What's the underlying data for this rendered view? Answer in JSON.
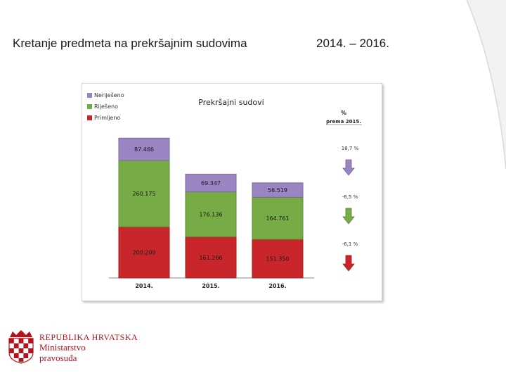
{
  "slide": {
    "title": "Kretanje predmeta na prekršajnim sudovima",
    "years_range": "2014. – 2016."
  },
  "chart_data": {
    "type": "bar",
    "stacked": true,
    "title": "Prekršajni sudovi",
    "categories": [
      "2014.",
      "2015.",
      "2016."
    ],
    "series": [
      {
        "key": "primljeno",
        "name": "Primljeno",
        "color": "#c8262a",
        "values": [
          200209,
          161266,
          151350
        ],
        "labels": [
          "200.209",
          "161.266",
          "151.350"
        ]
      },
      {
        "key": "rijeseno",
        "name": "Riješeno",
        "color": "#77ab45",
        "values": [
          260175,
          176136,
          164761
        ],
        "labels": [
          "260.175",
          "176.136",
          "164.761"
        ]
      },
      {
        "key": "nerijeseno",
        "name": "Neriješeno",
        "color": "#9a84c1",
        "values": [
          87466,
          69347,
          56519
        ],
        "labels": [
          "87.466",
          "69.347",
          "56.519"
        ]
      }
    ],
    "legend": {
      "position": "top-left",
      "order": [
        "Neriješeno",
        "Riješeno",
        "Primljeno"
      ]
    },
    "change_panel": {
      "header_line1": "%",
      "header_line2": "prema 2015.",
      "items": [
        {
          "label": "18,7 %",
          "value": 18.7,
          "series": "Neriješeno",
          "arrow": "down",
          "color": "#9a84c1"
        },
        {
          "label": "-6,5 %",
          "value": -6.5,
          "series": "Riješeno",
          "arrow": "down",
          "color": "#77ab45"
        },
        {
          "label": "-6,1 %",
          "value": -6.1,
          "series": "Primljeno",
          "arrow": "down",
          "color": "#c8262a"
        }
      ]
    }
  },
  "branding": {
    "line1": "REPUBLIKA HRVATSKA",
    "line2": "Ministarstvo",
    "line3": "pravosuđa",
    "accent": "#b5121b"
  }
}
